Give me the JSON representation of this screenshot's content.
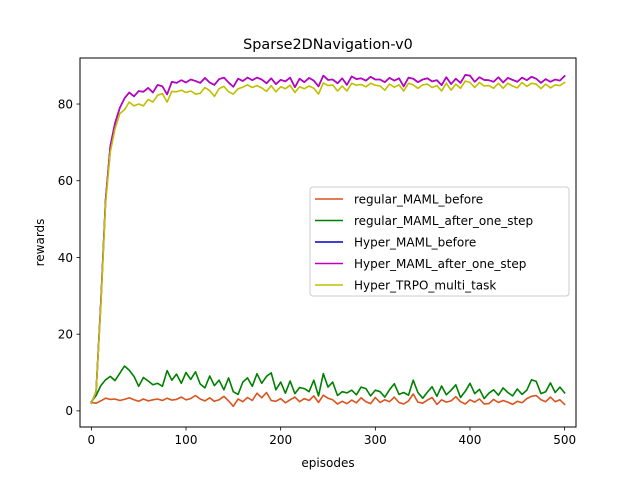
{
  "chart_data": {
    "type": "line",
    "title": "Sparse2DNavigation-v0",
    "xlabel": "episodes",
    "ylabel": "rewards",
    "xlim": [
      -12,
      512
    ],
    "ylim": [
      -4.2,
      92
    ],
    "xticks": [
      0,
      100,
      200,
      300,
      400,
      500
    ],
    "yticks": [
      0,
      20,
      40,
      60,
      80
    ],
    "grid": false,
    "legend_position": "center-right",
    "x": [
      0,
      5,
      10,
      15,
      20,
      25,
      30,
      35,
      40,
      45,
      50,
      55,
      60,
      65,
      70,
      75,
      80,
      85,
      90,
      95,
      100,
      105,
      110,
      115,
      120,
      125,
      130,
      135,
      140,
      145,
      150,
      155,
      160,
      165,
      170,
      175,
      180,
      185,
      190,
      195,
      200,
      205,
      210,
      215,
      220,
      225,
      230,
      235,
      240,
      245,
      250,
      255,
      260,
      265,
      270,
      275,
      280,
      285,
      290,
      295,
      300,
      305,
      310,
      315,
      320,
      325,
      330,
      335,
      340,
      345,
      350,
      355,
      360,
      365,
      370,
      375,
      380,
      385,
      390,
      395,
      400,
      405,
      410,
      415,
      420,
      425,
      430,
      435,
      440,
      445,
      450,
      455,
      460,
      465,
      470,
      475,
      480,
      485,
      490,
      495,
      500
    ],
    "series": [
      {
        "name": "regular_MAML_before",
        "color": "#d9541e",
        "values": [
          2.2,
          2.0,
          2.6,
          3.3,
          3.0,
          3.1,
          2.7,
          3.0,
          3.4,
          2.9,
          2.5,
          3.1,
          2.6,
          2.9,
          3.1,
          2.7,
          3.3,
          2.8,
          3.0,
          3.6,
          2.9,
          3.2,
          4.0,
          3.1,
          2.6,
          3.4,
          2.5,
          2.9,
          3.8,
          2.6,
          1.2,
          3.1,
          2.4,
          3.5,
          2.7,
          4.6,
          3.4,
          4.8,
          2.7,
          2.5,
          3.2,
          2.1,
          2.9,
          3.6,
          2.4,
          3.2,
          2.7,
          3.9,
          2.2,
          4.1,
          3.3,
          2.9,
          1.8,
          2.5,
          1.9,
          2.8,
          2.1,
          3.4,
          2.4,
          1.9,
          3.5,
          2.2,
          2.9,
          2.4,
          3.6,
          2.2,
          1.8,
          2.6,
          4.4,
          2.3,
          2.0,
          2.8,
          3.5,
          1.7,
          2.9,
          2.3,
          2.6,
          3.7,
          2.4,
          1.8,
          2.9,
          2.3,
          3.1,
          1.8,
          1.9,
          3.0,
          2.2,
          2.7,
          2.3,
          1.7,
          2.5,
          2.1,
          3.2,
          3.8,
          4.0,
          2.9,
          2.4,
          3.6,
          2.4,
          2.9,
          1.7
        ]
      },
      {
        "name": "regular_MAML_after_one_step",
        "color": "#008000",
        "values": [
          2.4,
          4.0,
          6.6,
          8.1,
          9.0,
          7.9,
          9.8,
          11.7,
          10.6,
          9.0,
          6.4,
          8.7,
          7.8,
          6.8,
          7.2,
          6.4,
          10.5,
          8.0,
          9.6,
          7.2,
          10.0,
          8.2,
          10.2,
          7.0,
          6.0,
          9.1,
          6.6,
          8.0,
          5.5,
          8.6,
          5.0,
          4.3,
          7.5,
          8.6,
          6.4,
          9.7,
          7.2,
          9.0,
          9.9,
          5.5,
          7.5,
          4.6,
          7.8,
          4.5,
          6.1,
          5.8,
          5.0,
          8.0,
          3.9,
          9.7,
          6.2,
          7.5,
          4.0,
          5.0,
          4.7,
          5.4,
          4.2,
          6.2,
          5.8,
          3.9,
          5.4,
          5.0,
          3.6,
          5.5,
          7.1,
          4.3,
          4.8,
          4.1,
          8.0,
          4.8,
          3.3,
          4.9,
          6.3,
          3.8,
          6.5,
          4.2,
          5.4,
          6.8,
          3.5,
          5.1,
          7.2,
          4.5,
          5.6,
          3.2,
          4.6,
          5.5,
          4.1,
          6.0,
          4.8,
          3.9,
          5.7,
          4.3,
          5.4,
          8.1,
          7.7,
          4.5,
          5.0,
          7.3,
          4.8,
          6.2,
          4.7
        ]
      },
      {
        "name": "Hyper_MAML_before",
        "color": "#0000cc",
        "values": [
          2.0,
          5.0,
          28.0,
          55.0,
          69.0,
          75.0,
          79.0,
          81.5,
          83.0,
          82.0,
          83.4,
          83.2,
          84.2,
          83.0,
          85.0,
          84.6,
          82.5,
          85.8,
          85.5,
          86.2,
          85.6,
          86.4,
          86.0,
          85.5,
          86.8,
          85.6,
          85.0,
          86.5,
          86.9,
          85.6,
          84.5,
          86.6,
          86.0,
          86.9,
          86.2,
          86.9,
          86.4,
          85.4,
          86.7,
          85.2,
          86.3,
          85.9,
          86.9,
          84.4,
          86.6,
          85.7,
          86.8,
          86.1,
          84.6,
          87.4,
          86.3,
          86.4,
          85.4,
          86.7,
          85.0,
          87.2,
          86.5,
          86.7,
          86.1,
          87.1,
          86.4,
          86.4,
          85.7,
          86.8,
          86.1,
          86.7,
          84.6,
          86.9,
          86.6,
          85.7,
          86.4,
          86.7,
          85.9,
          86.2,
          84.9,
          87.0,
          85.2,
          86.6,
          85.5,
          87.6,
          87.4,
          85.8,
          87.0,
          86.3,
          86.2,
          85.8,
          87.0,
          85.6,
          86.8,
          86.3,
          85.8,
          86.9,
          86.2,
          87.1,
          86.6,
          85.5,
          86.5,
          85.8,
          86.4,
          86.1,
          87.3
        ]
      },
      {
        "name": "Hyper_MAML_after_one_step",
        "color": "#bf00bf",
        "values": [
          2.0,
          5.0,
          28.0,
          55.0,
          69.0,
          75.0,
          79.0,
          81.5,
          83.0,
          82.0,
          83.4,
          83.2,
          84.2,
          83.0,
          85.0,
          84.6,
          82.5,
          85.8,
          85.5,
          86.2,
          85.6,
          86.4,
          86.0,
          85.5,
          86.8,
          85.6,
          85.0,
          86.5,
          86.9,
          85.6,
          84.5,
          86.6,
          86.0,
          86.9,
          86.2,
          86.9,
          86.4,
          85.4,
          86.7,
          85.2,
          86.3,
          85.9,
          86.9,
          84.4,
          86.6,
          85.7,
          86.8,
          86.1,
          84.6,
          87.4,
          86.3,
          86.4,
          85.4,
          86.7,
          85.0,
          87.2,
          86.5,
          86.7,
          86.1,
          87.1,
          86.4,
          86.4,
          85.7,
          86.8,
          86.1,
          86.7,
          84.6,
          86.9,
          86.6,
          85.7,
          86.4,
          86.7,
          85.9,
          86.2,
          84.9,
          87.0,
          85.2,
          86.6,
          85.5,
          87.6,
          87.4,
          85.8,
          87.0,
          86.3,
          86.2,
          85.8,
          87.0,
          85.6,
          86.8,
          86.3,
          85.8,
          86.9,
          86.2,
          87.1,
          86.6,
          85.5,
          86.5,
          85.8,
          86.4,
          86.1,
          87.3
        ]
      },
      {
        "name": "Hyper_TRPO_multi_task",
        "color": "#bfbf00",
        "values": [
          2.0,
          5.0,
          27.0,
          54.0,
          67.5,
          73.5,
          77.5,
          78.5,
          80.5,
          79.5,
          80.0,
          79.5,
          81.2,
          80.5,
          82.3,
          82.7,
          80.5,
          83.3,
          83.2,
          83.6,
          83.0,
          83.4,
          82.6,
          82.8,
          84.3,
          83.5,
          82.0,
          84.0,
          84.6,
          83.2,
          82.6,
          84.0,
          84.4,
          85.0,
          84.3,
          84.8,
          84.2,
          83.3,
          84.8,
          83.2,
          84.5,
          84.0,
          84.9,
          83.0,
          84.5,
          84.0,
          84.7,
          84.1,
          82.6,
          85.5,
          84.8,
          85.0,
          83.4,
          84.7,
          83.4,
          85.4,
          84.9,
          85.1,
          84.5,
          85.4,
          84.9,
          84.7,
          83.6,
          85.2,
          84.4,
          85.0,
          83.4,
          85.4,
          85.0,
          84.1,
          85.0,
          85.2,
          84.3,
          84.8,
          83.4,
          85.4,
          83.6,
          85.2,
          84.1,
          86.0,
          85.6,
          84.3,
          85.6,
          84.7,
          84.8,
          84.1,
          85.4,
          84.1,
          85.4,
          84.7,
          84.2,
          85.6,
          84.6,
          85.4,
          85.2,
          84.0,
          85.2,
          84.2,
          85.0,
          84.8,
          85.6
        ]
      }
    ]
  }
}
